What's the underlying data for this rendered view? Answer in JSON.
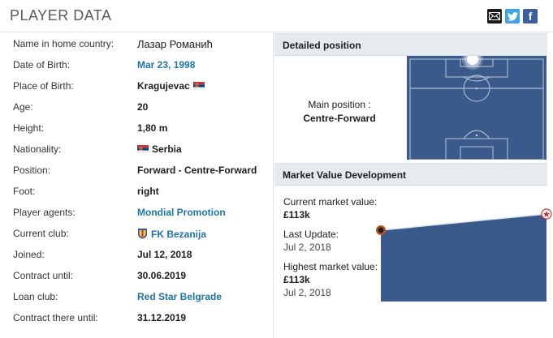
{
  "header": {
    "title": "PLAYER DATA",
    "share": {
      "mail_icon": "envelope-icon",
      "twitter_icon": "twitter-bird-icon",
      "facebook_glyph": "f"
    }
  },
  "profile": {
    "rows": [
      {
        "label": "Name in home country:",
        "value": "Лазар Романић"
      },
      {
        "label": "Date of Birth:",
        "value": "Mar 23, 1998"
      },
      {
        "label": "Place of Birth:",
        "value": "Kragujevac"
      },
      {
        "label": "Age:",
        "value": "20"
      },
      {
        "label": "Height:",
        "value": "1,80 m"
      },
      {
        "label": "Nationality:",
        "value": "Serbia"
      },
      {
        "label": "Position:",
        "value": "Forward - Centre-Forward"
      },
      {
        "label": "Foot:",
        "value": "right"
      },
      {
        "label": "Player agents:",
        "value": "Mondial Promotion"
      },
      {
        "label": "Current club:",
        "value": "FK Bezanija"
      },
      {
        "label": "Joined:",
        "value": "Jul 12, 2018"
      },
      {
        "label": "Contract until:",
        "value": "30.06.2019"
      },
      {
        "label": "Loan club:",
        "value": "Red Star Belgrade"
      },
      {
        "label": "Contract there until:",
        "value": "31.12.2019"
      }
    ]
  },
  "detailed_position": {
    "heading": "Detailed position",
    "main_label": "Main position :",
    "main_value": "Centre-Forward"
  },
  "market_value": {
    "heading": "Market Value Development",
    "current_label": "Current market value:",
    "current_value": "£113k",
    "last_update_label": "Last Update:",
    "last_update_value": "Jul 2, 2018",
    "highest_label": "Highest market value:",
    "highest_value": "£113k",
    "highest_date": "Jul 2, 2018"
  },
  "colors": {
    "link": "#1d75a3",
    "pitch": "#3a5a8c",
    "chart_fill": "#3a5a8c",
    "section_bg": "#e6ebf0"
  }
}
